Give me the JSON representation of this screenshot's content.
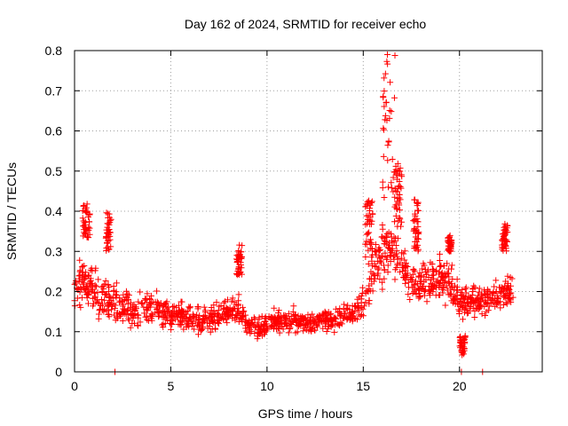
{
  "chart_data": {
    "type": "scatter",
    "title": "Day 162 of 2024, SRMTID for receiver echo",
    "xlabel": "GPS time / hours",
    "ylabel": "SRMTID / TECUs",
    "xlim": [
      0,
      24.3
    ],
    "ylim": [
      0,
      0.8
    ],
    "xticks": [
      0,
      5,
      10,
      15,
      20
    ],
    "yticks": [
      0,
      0.1,
      0.2,
      0.3,
      0.4,
      0.5,
      0.6,
      0.7,
      0.8
    ],
    "grid": true,
    "marker": "plus",
    "series": [
      {
        "name": "receiver echo",
        "color": "#ff0000",
        "envelope": {
          "x": [
            0,
            0.5,
            1.0,
            1.5,
            2.0,
            2.5,
            3.0,
            3.5,
            4.0,
            4.5,
            5.0,
            5.5,
            6.0,
            6.5,
            7.0,
            7.5,
            8.0,
            8.5,
            9.0,
            9.5,
            10.0,
            10.5,
            11.0,
            11.5,
            12.0,
            12.5,
            13.0,
            13.5,
            14.0,
            14.5,
            15.0,
            15.5,
            16.0,
            16.5,
            17.0,
            17.5,
            18.0,
            18.5,
            19.0,
            19.5,
            20.0,
            20.5,
            21.0,
            21.5,
            22.0,
            22.5,
            22.8
          ],
          "center": [
            0.19,
            0.24,
            0.2,
            0.18,
            0.17,
            0.16,
            0.15,
            0.16,
            0.17,
            0.15,
            0.14,
            0.14,
            0.13,
            0.13,
            0.13,
            0.14,
            0.15,
            0.16,
            0.12,
            0.11,
            0.12,
            0.13,
            0.13,
            0.13,
            0.12,
            0.12,
            0.13,
            0.13,
            0.14,
            0.15,
            0.17,
            0.25,
            0.3,
            0.32,
            0.26,
            0.23,
            0.22,
            0.22,
            0.23,
            0.22,
            0.18,
            0.17,
            0.17,
            0.18,
            0.19,
            0.2,
            0.2
          ],
          "spread": [
            0.06,
            0.08,
            0.07,
            0.08,
            0.07,
            0.06,
            0.06,
            0.06,
            0.06,
            0.06,
            0.05,
            0.05,
            0.05,
            0.05,
            0.05,
            0.05,
            0.05,
            0.06,
            0.04,
            0.04,
            0.04,
            0.04,
            0.04,
            0.04,
            0.03,
            0.03,
            0.03,
            0.04,
            0.04,
            0.05,
            0.07,
            0.09,
            0.1,
            0.1,
            0.08,
            0.07,
            0.07,
            0.07,
            0.08,
            0.07,
            0.06,
            0.05,
            0.05,
            0.05,
            0.05,
            0.06,
            0.06
          ]
        },
        "features": [
          {
            "x": [
              0.4,
              0.8
            ],
            "y": [
              0.33,
              0.43
            ]
          },
          {
            "x": [
              1.6,
              1.9
            ],
            "y": [
              0.3,
              0.4
            ]
          },
          {
            "x": [
              8.4,
              8.7
            ],
            "y": [
              0.24,
              0.32
            ]
          },
          {
            "x": [
              15.1,
              15.5
            ],
            "y": [
              0.28,
              0.43
            ]
          },
          {
            "x": [
              16.0,
              16.7
            ],
            "y": [
              0.4,
              0.79
            ]
          },
          {
            "x": [
              16.6,
              17.0
            ],
            "y": [
              0.35,
              0.52
            ]
          },
          {
            "x": [
              17.6,
              17.9
            ],
            "y": [
              0.3,
              0.43
            ]
          },
          {
            "x": [
              19.4,
              19.6
            ],
            "y": [
              0.3,
              0.34
            ]
          },
          {
            "x": [
              20.0,
              20.3
            ],
            "y": [
              0.04,
              0.09
            ]
          },
          {
            "x": [
              22.2,
              22.5
            ],
            "y": [
              0.3,
              0.37
            ]
          }
        ],
        "zeros": [
          2.1,
          20.1,
          21.2
        ],
        "count": 1400
      }
    ]
  }
}
